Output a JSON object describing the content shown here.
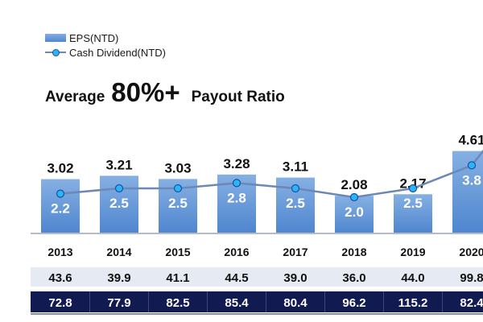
{
  "legend": {
    "eps_label": "EPS(NTD)",
    "dividend_label": "Cash Dividend(NTD)"
  },
  "headline": {
    "prefix": "Average",
    "highlight": "80%+",
    "suffix": "Payout Ratio"
  },
  "colors": {
    "bar_top": "#86b0e3",
    "bar_bottom": "#4f86cf",
    "line": "#6d87b6",
    "dot": "#29b6f6",
    "dot_border": "#1b4fa0",
    "row1_bg": "#e6eaf2",
    "row2_bg": "#121a52",
    "row2_text": "#ffffff"
  },
  "chart_data": {
    "type": "bar",
    "categories": [
      "2013",
      "2014",
      "2015",
      "2016",
      "2017",
      "2018",
      "2019",
      "2020"
    ],
    "series": [
      {
        "name": "EPS(NTD)",
        "type": "bar",
        "values": [
          3.02,
          3.21,
          3.03,
          3.28,
          3.11,
          2.08,
          2.17,
          4.61
        ],
        "labels": [
          "3.02",
          "3.21",
          "3.03",
          "3.28",
          "3.11",
          "2.08",
          "2.17",
          "4.61"
        ]
      },
      {
        "name": "Cash Dividend(NTD)",
        "type": "line",
        "values": [
          2.2,
          2.5,
          2.5,
          2.8,
          2.5,
          2.0,
          2.5,
          3.8
        ],
        "labels": [
          "2.2",
          "2.5",
          "2.5",
          "2.8",
          "2.5",
          "2.0",
          "2.5",
          "3.8"
        ]
      }
    ],
    "table_rows": [
      [
        "43.6",
        "39.9",
        "41.1",
        "44.5",
        "39.0",
        "36.0",
        "44.0",
        "99.8"
      ],
      [
        "72.8",
        "77.9",
        "82.5",
        "85.4",
        "80.4",
        "96.2",
        "115.2",
        "82.4"
      ]
    ]
  }
}
